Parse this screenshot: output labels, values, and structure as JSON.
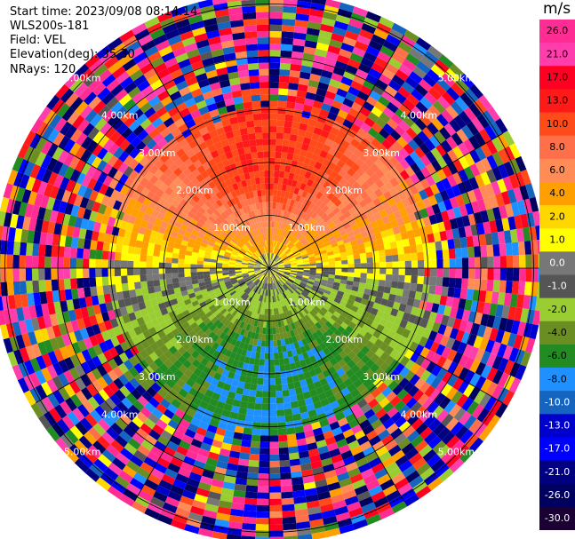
{
  "info": {
    "start_time": "Start time: 2023/09/08 08:14:14",
    "instrument": "WLS200s-181",
    "field": "Field: VEL",
    "elevation": "Elevation(deg): 35.30",
    "nrays": "NRays: 120"
  },
  "colorbar": {
    "unit": "m/s",
    "labels": [
      "26.0",
      "21.0",
      "17.0",
      "13.0",
      "10.0",
      "8.0",
      "6.0",
      "4.0",
      "2.0",
      "1.0",
      "0.0",
      "-1.0",
      "-2.0",
      "-4.0",
      "-6.0",
      "-8.0",
      "-10.0",
      "-13.0",
      "-17.0",
      "-21.0",
      "-26.0",
      "-30.0"
    ],
    "colors": [
      "#ff2d93",
      "#ff3dad",
      "#ff0022",
      "#ff1a1a",
      "#ff4a1a",
      "#ff6f4a",
      "#ff8c57",
      "#ff9f00",
      "#ffd700",
      "#ffff00",
      "#777777",
      "#555555",
      "#9acd32",
      "#6b8e23",
      "#228b22",
      "#1e90ff",
      "#1565c0",
      "#0000cd",
      "#0000ff",
      "#000080",
      "#000060",
      "#1a0033"
    ]
  },
  "ring_labels": [
    "1.00km",
    "2.00km",
    "3.00km",
    "4.00km",
    "5.00km"
  ],
  "chart_data": {
    "type": "heatmap",
    "projection": "polar",
    "n_rays": 120,
    "ring_ranges_km": [
      1,
      2,
      3,
      4,
      5
    ],
    "value_range": [
      -30,
      26
    ],
    "unit": "m/s",
    "pattern": {
      "north_sector_peak": 10,
      "south_sector_peak": -8,
      "noise_beyond_km": 3.2
    }
  }
}
